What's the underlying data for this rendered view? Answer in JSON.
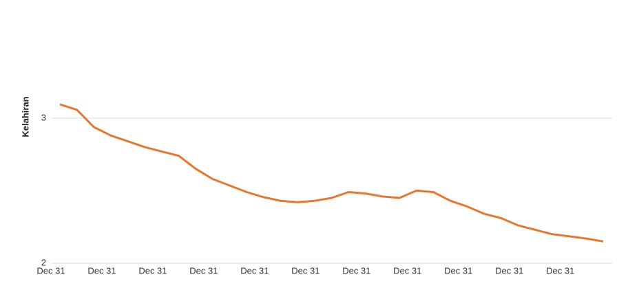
{
  "chart_data": {
    "type": "line",
    "y_label": "Kelahiran",
    "categories": [
      "Dec 31",
      null,
      null,
      "Dec 31",
      null,
      null,
      "Dec 31",
      null,
      null,
      "Dec 31",
      null,
      null,
      "Dec 31",
      null,
      null,
      "Dec 31",
      null,
      null,
      "Dec 31",
      null,
      null,
      "Dec 31",
      null,
      null,
      "Dec 31",
      null,
      null,
      "Dec 31",
      null,
      null,
      "Dec 31",
      null,
      null
    ],
    "series": [
      {
        "name": "Kelahiran",
        "color": "#e8772e",
        "values": [
          3.095,
          3.057,
          2.938,
          2.88,
          2.84,
          2.8,
          2.77,
          2.74,
          2.65,
          2.58,
          2.535,
          2.49,
          2.455,
          2.43,
          2.42,
          2.43,
          2.45,
          2.49,
          2.48,
          2.46,
          2.45,
          2.5,
          2.49,
          2.43,
          2.39,
          2.34,
          2.31,
          2.26,
          2.23,
          2.2,
          2.185,
          2.17,
          2.15
        ]
      }
    ],
    "ylim": [
      2,
      3.7
    ],
    "yticks": [
      2,
      3
    ],
    "grid": true
  }
}
